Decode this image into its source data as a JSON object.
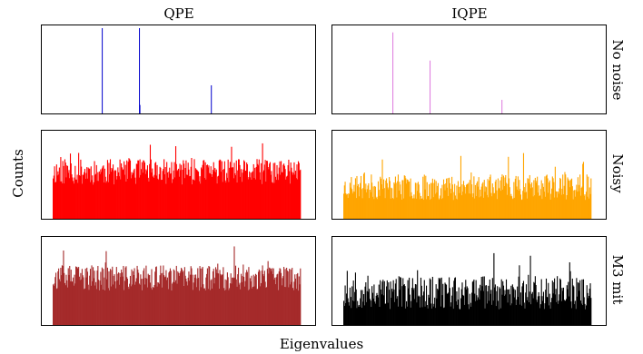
{
  "figure": {
    "column_titles": [
      "QPE",
      "IQPE"
    ],
    "row_labels": [
      "No noise",
      "Noisy",
      "M3 mit"
    ],
    "xlabel": "Eigenvalues",
    "ylabel": "Counts"
  },
  "chart_data": [
    {
      "type": "bar",
      "panel": "qpe-no-noise",
      "column": "QPE",
      "row": "No noise",
      "color": "#0000cc",
      "bins": 0,
      "mode": "peaks",
      "ylim": [
        0,
        1
      ],
      "peaks": [
        {
          "x": 0.2,
          "y": 1.0
        },
        {
          "x": 0.35,
          "y": 1.0
        },
        {
          "x": 0.352,
          "y": 0.1
        },
        {
          "x": 0.64,
          "y": 0.33
        }
      ]
    },
    {
      "type": "bar",
      "panel": "iqpe-no-noise",
      "column": "IQPE",
      "row": "No noise",
      "color": "#dd77dd",
      "bins": 0,
      "mode": "peaks",
      "ylim": [
        0,
        1
      ],
      "peaks": [
        {
          "x": 0.2,
          "y": 0.95
        },
        {
          "x": 0.35,
          "y": 0.62
        },
        {
          "x": 0.64,
          "y": 0.16
        }
      ]
    },
    {
      "type": "bar",
      "panel": "qpe-noisy",
      "column": "QPE",
      "row": "Noisy",
      "color": "#ff0000",
      "bins": 360,
      "mode": "noise",
      "ylim": [
        0,
        1
      ],
      "base": 0.55,
      "spread": 0.15,
      "seed": 11
    },
    {
      "type": "bar",
      "panel": "iqpe-noisy",
      "column": "IQPE",
      "row": "Noisy",
      "color": "#ffa500",
      "bins": 360,
      "mode": "noise",
      "ylim": [
        0,
        1
      ],
      "base": 0.37,
      "spread": 0.15,
      "seed": 23
    },
    {
      "type": "bar",
      "panel": "qpe-m3",
      "column": "QPE",
      "row": "M3 mit",
      "color": "#a52a2a",
      "bins": 360,
      "mode": "noise",
      "ylim": [
        0,
        1
      ],
      "base": 0.55,
      "spread": 0.15,
      "seed": 37
    },
    {
      "type": "bar",
      "panel": "iqpe-m3",
      "column": "IQPE",
      "row": "M3 mit",
      "color": "#000000",
      "bins": 360,
      "mode": "noise",
      "ylim": [
        0,
        1
      ],
      "base": 0.38,
      "spread": 0.2,
      "seed": 53
    }
  ]
}
